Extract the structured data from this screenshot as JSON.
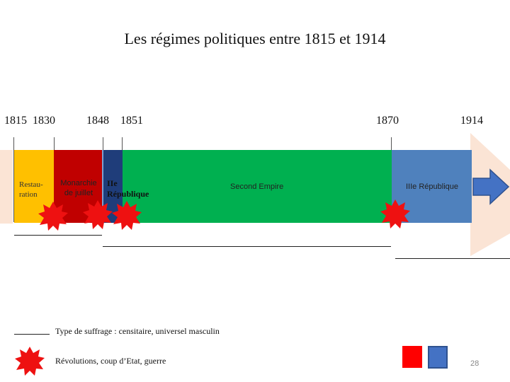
{
  "title": "Les régimes politiques entre 1815 et 1914",
  "years": [
    "1815",
    "1830",
    "1848",
    "1851",
    "1870",
    "1914"
  ],
  "periods": [
    {
      "label": "Restau-\nration",
      "color": "#ffc000"
    },
    {
      "label": "Monarchie\nde juillet",
      "color": "#c00000"
    },
    {
      "label": "IIe\nRépublique",
      "color": "#1f3d7a"
    },
    {
      "label": "Second Empire",
      "color": "#00b050"
    },
    {
      "label": "IIIe République",
      "color": "#4f81bd"
    }
  ],
  "legend": {
    "suffrage": "Type de suffrage : censitaire, universel masculin",
    "revolutions": "Révolutions, coup d’Etat, guerre"
  },
  "page_number": "28",
  "colors": {
    "burst": "#ee1111",
    "background_arrow": "#fbe4d5",
    "arrow_blue": "#4472c4"
  }
}
